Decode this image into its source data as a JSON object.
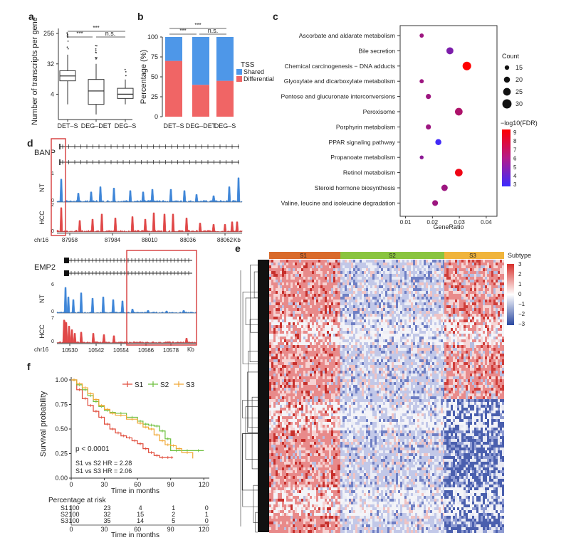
{
  "panels": {
    "a": {
      "label": "a",
      "ylabel": "Number of transcripts per gene",
      "yticks": [
        "256",
        "32",
        "4"
      ],
      "categories": [
        "DET–S",
        "DEG–DET",
        "DEG–S"
      ],
      "sig": [
        "***",
        "***",
        "n.s."
      ],
      "chart_data": {
        "type": "box",
        "ylabel": "Number of transcripts per gene",
        "yscale": "log2",
        "categories": [
          "DET–S",
          "DEG–DET",
          "DEG–S"
        ],
        "boxes": [
          {
            "category": "DET–S",
            "q1": 10,
            "median": 14,
            "q3": 20,
            "whisker_low": 2,
            "whisker_high": 60
          },
          {
            "category": "DEG–DET",
            "q1": 2,
            "median": 5,
            "q3": 11,
            "whisker_low": 1,
            "whisker_high": 32
          },
          {
            "category": "DEG–S",
            "q1": 3,
            "median": 4,
            "q3": 6,
            "whisker_low": 2,
            "whisker_high": 11
          }
        ]
      }
    },
    "b": {
      "label": "b",
      "ylabel": "Percentage (%)",
      "yticks": [
        "100",
        "75",
        "50",
        "25",
        "0"
      ],
      "categories": [
        "DET–S",
        "DEG–DET",
        "DEG–S"
      ],
      "sig": [
        "***",
        "***",
        "n.s."
      ],
      "legend_title": "TSS",
      "legend": [
        "Shared",
        "Differential"
      ],
      "colors": {
        "shared": "#4e97e8",
        "differential": "#f06565"
      },
      "chart_data": {
        "type": "bar",
        "stacked": true,
        "categories": [
          "DET–S",
          "DEG–DET",
          "DEG–S"
        ],
        "series": [
          {
            "name": "Differential",
            "values": [
              70,
              40,
              45
            ]
          },
          {
            "name": "Shared",
            "values": [
              30,
              60,
              55
            ]
          }
        ],
        "ylabel": "Percentage (%)",
        "ylim": [
          0,
          100
        ]
      }
    },
    "c": {
      "label": "c",
      "xlabel": "GeneRatio",
      "xticks": [
        "0.01",
        "0.02",
        "0.03",
        "0.04"
      ],
      "size_legend_title": "Count",
      "size_legend": [
        "15",
        "20",
        "25",
        "30"
      ],
      "color_legend_title": "−log10(FDR)",
      "color_legend": [
        "9",
        "8",
        "7",
        "6",
        "5",
        "4",
        "3"
      ],
      "chart_data": {
        "type": "scatter",
        "xlabel": "GeneRatio",
        "xlim": [
          0.008,
          0.044
        ],
        "points": [
          {
            "term": "Ascorbate and aldarate metabolism",
            "x": 0.016,
            "count": 14,
            "fdr_log": 6.0
          },
          {
            "term": "Bile secretion",
            "x": 0.0265,
            "count": 23,
            "fdr_log": 5.0
          },
          {
            "term": "Chemical carcinogenesis − DNA adducts",
            "x": 0.0328,
            "count": 28,
            "fdr_log": 9.0
          },
          {
            "term": "Glyoxylate and dicarboxylate metabolism",
            "x": 0.016,
            "count": 14,
            "fdr_log": 6.0
          },
          {
            "term": "Pentose and glucuronate interconversions",
            "x": 0.0185,
            "count": 17,
            "fdr_log": 6.0
          },
          {
            "term": "Peroxisome",
            "x": 0.0298,
            "count": 25,
            "fdr_log": 6.5
          },
          {
            "term": "Porphyrin metabolism",
            "x": 0.0185,
            "count": 17,
            "fdr_log": 6.0
          },
          {
            "term": "PPAR signaling pathway",
            "x": 0.0222,
            "count": 20,
            "fdr_log": 3.2
          },
          {
            "term": "Propanoate metabolism",
            "x": 0.016,
            "count": 13,
            "fdr_log": 5.5
          },
          {
            "term": "Retinol metabolism",
            "x": 0.0298,
            "count": 25,
            "fdr_log": 8.5
          },
          {
            "term": "Steroid hormone biosynthesis",
            "x": 0.0245,
            "count": 21,
            "fdr_log": 6.0
          },
          {
            "term": "Valine, leucine and isoleucine degradation",
            "x": 0.021,
            "count": 19,
            "fdr_log": 6.0
          }
        ]
      }
    },
    "d": {
      "label": "d",
      "top": {
        "gene": "BANP",
        "chrom": "chr16",
        "ticks": [
          "87958",
          "87984",
          "88010",
          "88036",
          "88062"
        ],
        "unit": "Kb",
        "nt_label": "NT",
        "hcc_label": "HCC",
        "nt_max": "1",
        "nt_zero": "0",
        "hcc_max": "2",
        "hcc_zero": "0"
      },
      "bottom": {
        "gene": "EMP2",
        "chrom": "chr16",
        "ticks": [
          "10530",
          "10542",
          "10554",
          "10566",
          "10578"
        ],
        "unit": "Kb",
        "nt_label": "NT",
        "hcc_label": "HCC",
        "nt_max": "6",
        "nt_zero": "0",
        "hcc_max": "7",
        "hcc_zero": "0"
      }
    },
    "e": {
      "label": "e",
      "subtypes": [
        "S1",
        "S2",
        "S3"
      ],
      "subtype_title": "Subtype",
      "subtype_colors": [
        "#d96a2b",
        "#8ac43f",
        "#f0b43c"
      ],
      "scale_ticks": [
        "3",
        "2",
        "1",
        "0",
        "−1",
        "−2",
        "−3"
      ]
    },
    "f": {
      "label": "f",
      "ylabel": "Survival probability",
      "xlabel": "Time in months",
      "yticks": [
        "1.00",
        "0.75",
        "0.50",
        "0.25",
        "0.00"
      ],
      "xticks": [
        "0",
        "30",
        "60",
        "90",
        "120"
      ],
      "legend": [
        "S1",
        "S2",
        "S3"
      ],
      "colors": [
        "#e04b3a",
        "#6cbf3c",
        "#f0a733"
      ],
      "pvalue": "p < 0.0001",
      "hr1": "S1 vs S2 HR = 2.28",
      "hr2": "S1 vs S3 HR = 2.06",
      "risk_title": "Percentage at risk",
      "risk_rows": [
        {
          "name": "S1",
          "values": [
            "100",
            "23",
            "4",
            "1",
            "0"
          ]
        },
        {
          "name": "S2",
          "values": [
            "100",
            "32",
            "15",
            "2",
            "1"
          ]
        },
        {
          "name": "S3",
          "values": [
            "100",
            "35",
            "14",
            "5",
            "0"
          ]
        }
      ],
      "risk_xlabel": "Time in months",
      "chart_data": {
        "type": "line",
        "xlabel": "Time in months",
        "ylabel": "Survival probability",
        "xlim": [
          0,
          125
        ],
        "ylim": [
          0,
          1
        ],
        "series": [
          {
            "name": "S1",
            "x": [
              0,
              5,
              10,
              15,
              20,
              25,
              30,
              35,
              40,
              45,
              50,
              55,
              60,
              65,
              70,
              75,
              80,
              85,
              90,
              92
            ],
            "y": [
              1.0,
              0.9,
              0.81,
              0.74,
              0.68,
              0.62,
              0.55,
              0.5,
              0.46,
              0.43,
              0.41,
              0.38,
              0.35,
              0.3,
              0.26,
              0.23,
              0.21,
              0.21,
              0.21,
              0.21
            ]
          },
          {
            "name": "S2",
            "x": [
              0,
              5,
              10,
              15,
              20,
              25,
              30,
              35,
              40,
              50,
              60,
              65,
              70,
              75,
              80,
              85,
              90,
              100,
              110,
              120
            ],
            "y": [
              1.0,
              0.95,
              0.9,
              0.84,
              0.78,
              0.73,
              0.69,
              0.67,
              0.66,
              0.62,
              0.58,
              0.55,
              0.54,
              0.53,
              0.48,
              0.4,
              0.28,
              0.28,
              0.28,
              0.28
            ]
          },
          {
            "name": "S3",
            "x": [
              0,
              5,
              10,
              15,
              20,
              25,
              30,
              35,
              40,
              50,
              60,
              65,
              70,
              75,
              80,
              85,
              90,
              95,
              100,
              110
            ],
            "y": [
              1.0,
              0.96,
              0.92,
              0.86,
              0.8,
              0.74,
              0.7,
              0.66,
              0.64,
              0.6,
              0.56,
              0.52,
              0.5,
              0.44,
              0.38,
              0.34,
              0.33,
              0.3,
              0.26,
              0.2
            ]
          }
        ]
      }
    }
  }
}
